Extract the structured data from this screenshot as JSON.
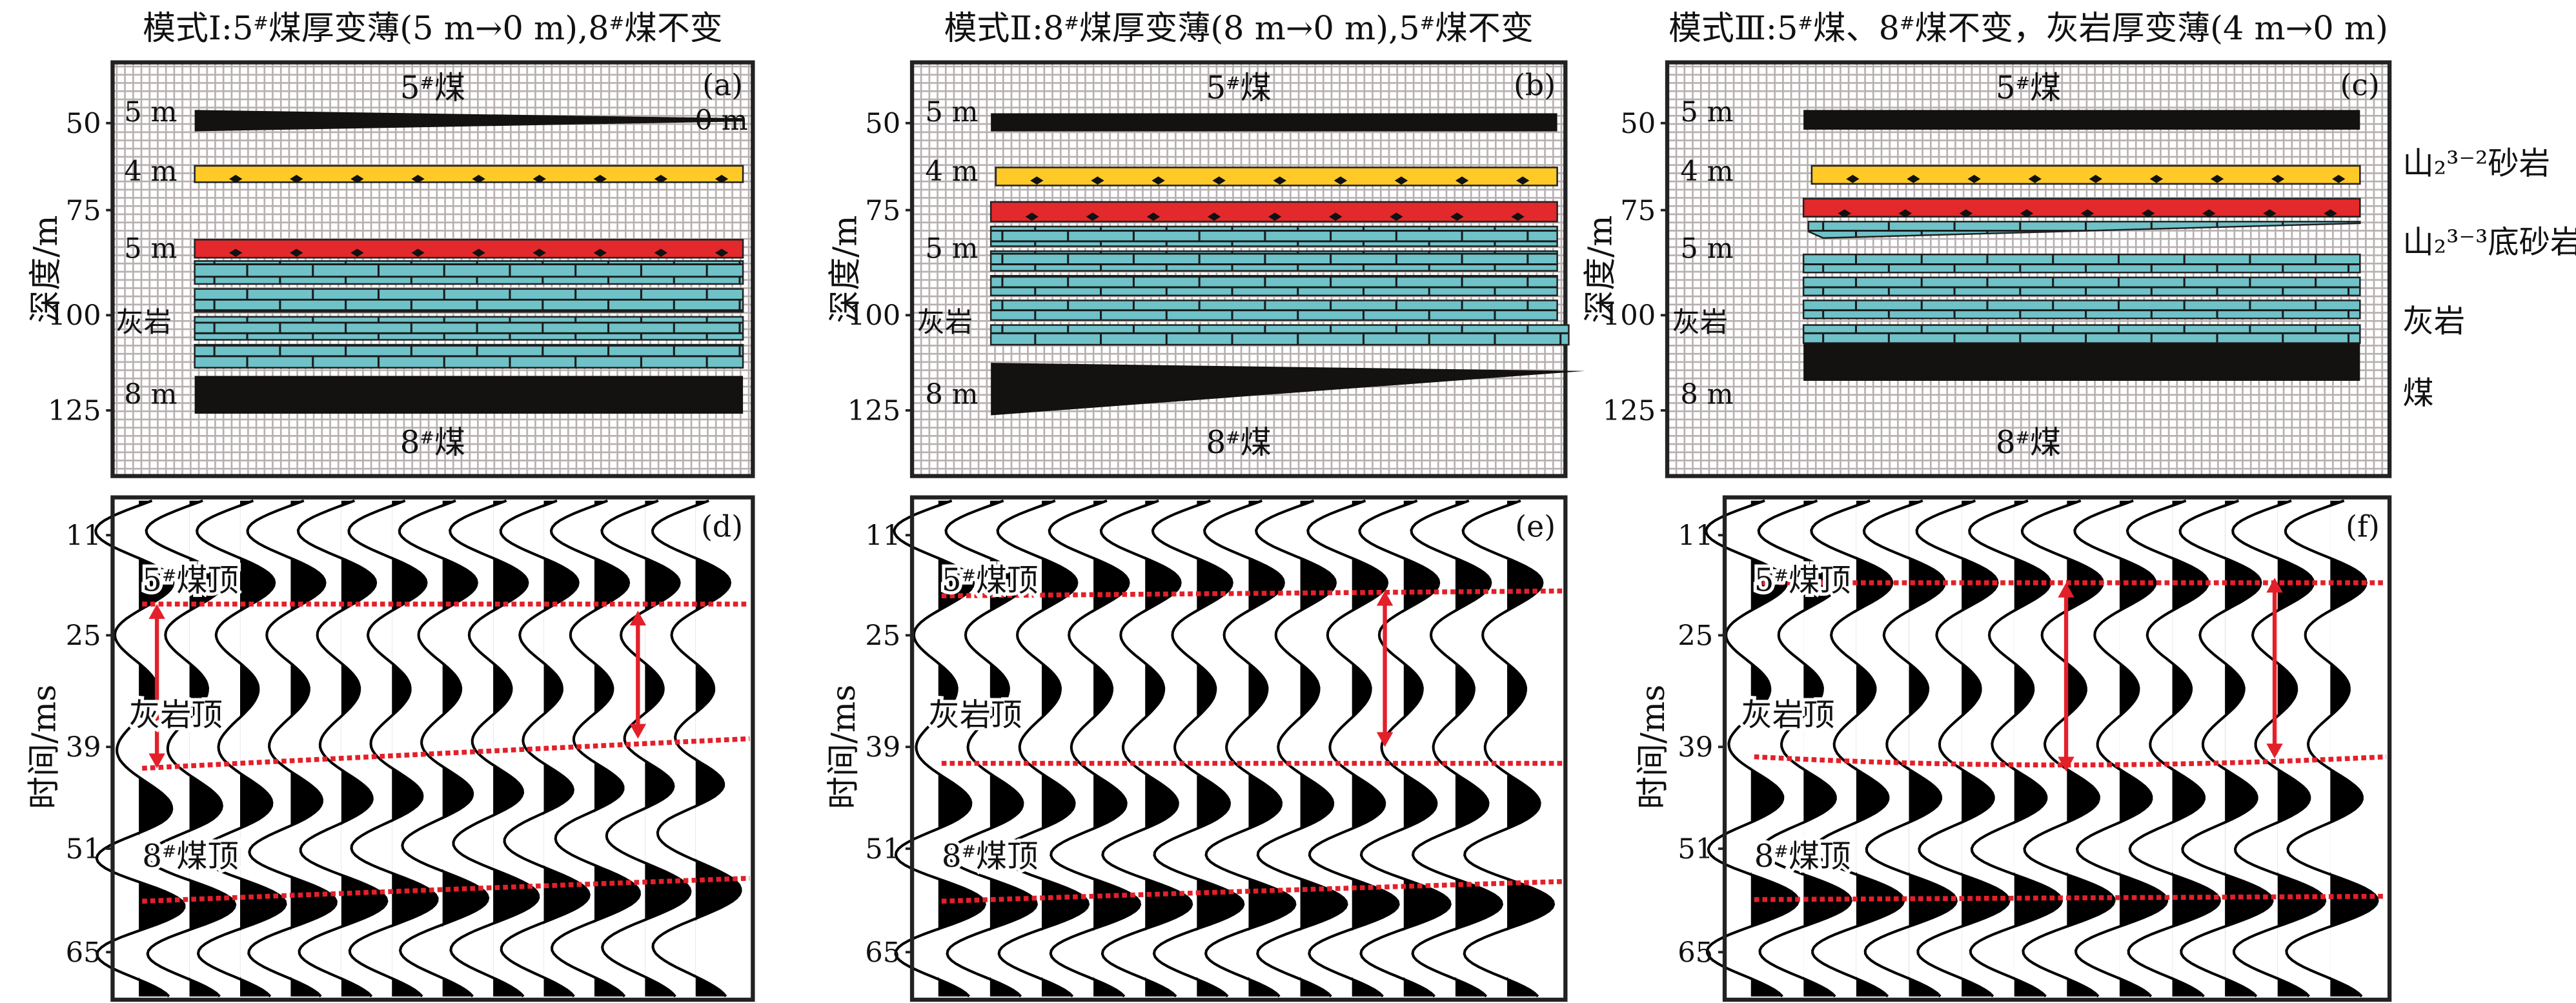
{
  "colors": {
    "coal": "#141210",
    "sandstone_upper": "#ffc928",
    "sandstone_lower": "#e3292b",
    "limestone": "#6fc2c8",
    "horizon": "#e3202a",
    "grid": "#b8b0b0"
  },
  "top_axis_label": "深度/m",
  "top_ticks": [
    "50",
    "75",
    "100",
    "125"
  ],
  "bottom_axis_label": "时间/ms",
  "bottom_ticks": [
    "11",
    "25",
    "39",
    "51",
    "65"
  ],
  "panels": [
    {
      "title": "模式Ⅰ:5#煤厚变薄(5 m→0 m),8#煤不变",
      "model_tag": "(a)",
      "section_tag": "(d)",
      "coal5_label": "5#煤",
      "coal8_label": "8#煤",
      "coal5_thick": "5 m",
      "coal5_right_thick": "0 m",
      "sand_thick": "4 m",
      "base_sand_thick": "5 m",
      "limestone_label": "灰岩",
      "coal8_thick": "8 m",
      "h1": "5#煤顶",
      "h2": "灰岩顶",
      "h3": "8#煤顶"
    },
    {
      "title": "模式Ⅱ:8#煤厚变薄(8 m→0 m),5#煤不变",
      "model_tag": "(b)",
      "section_tag": "(e)",
      "coal5_label": "5#煤",
      "coal8_label": "8#煤",
      "coal5_thick": "5 m",
      "sand_thick": "4 m",
      "base_sand_thick": "5 m",
      "limestone_label": "灰岩",
      "coal8_thick": "8 m",
      "h1": "5#煤顶",
      "h2": "灰岩顶",
      "h3": "8#煤顶"
    },
    {
      "title": "模式Ⅲ:5#煤、8#煤不变，灰岩厚变薄(4 m→0 m)",
      "model_tag": "(c)",
      "section_tag": "(f)",
      "coal5_label": "5#煤",
      "coal8_label": "8#煤",
      "coal5_thick": "5 m",
      "sand_thick": "4 m",
      "base_sand_thick": "5 m",
      "limestone_label": "灰岩",
      "coal8_thick": "8 m",
      "h1": "5#煤顶",
      "h2": "灰岩顶",
      "h3": "8#煤顶"
    }
  ],
  "legend": [
    "山₂³⁻²砂岩",
    "山₂³⁻³底砂岩",
    "灰岩",
    "煤"
  ]
}
